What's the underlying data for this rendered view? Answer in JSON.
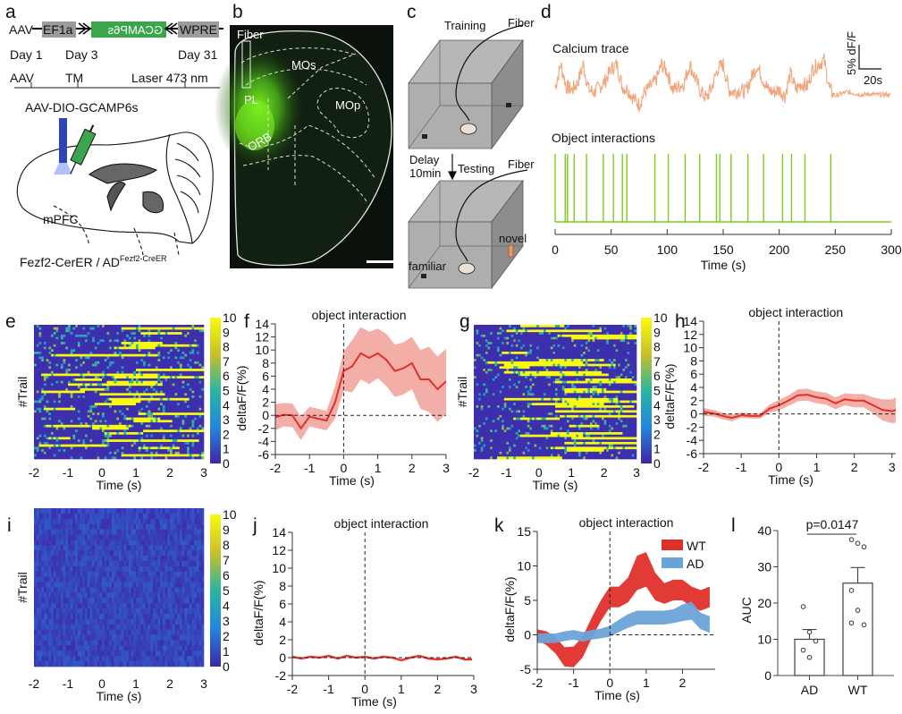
{
  "panel_labels": [
    "a",
    "b",
    "c",
    "d",
    "e",
    "f",
    "g",
    "h",
    "i",
    "j",
    "k",
    "l"
  ],
  "panel_a": {
    "construct": {
      "left": "AAV",
      "ef1a": "EF1a",
      "gcamp": "GCAMP6s",
      "wpre": "WPRE"
    },
    "days": [
      "Day 1",
      "Day 3",
      "Day 31"
    ],
    "events": [
      "AAV",
      "TM",
      "Laser 473 nm"
    ],
    "virus": "AAV-DIO-GCAMP6s",
    "region": "mPFC",
    "genotype": "Fezf2-CerER / AD",
    "genotype_sup": "Fezf2-CreER",
    "colors": {
      "construct_gray": "#9b9b9b",
      "gcamp_green": "#3aa54a",
      "fiber_blue": "#2f45b5"
    }
  },
  "panel_b": {
    "fiber": "Fiber",
    "regions": [
      "PL",
      "MOs",
      "MOp",
      "ORB"
    ]
  },
  "panel_c": {
    "training": "Training",
    "fiber": "Fiber",
    "delay": "Delay",
    "delay_time": "10min",
    "testing": "Testing",
    "novel": "novel",
    "familiar": "familiar"
  },
  "panel_d": {
    "trace_title": "Calcium trace",
    "events_title": "Object interactions",
    "scale_y": "5% dF/F",
    "scale_x": "20s"
  },
  "chart_data": [
    {
      "id": "d_trace",
      "type": "line",
      "title": "Calcium trace",
      "x_step": 5,
      "x_start": 0,
      "values": [
        5.0,
        9.8,
        5.2,
        4.6,
        5.9,
        9.8,
        4.6,
        4.1,
        5.2,
        6.5,
        8.9,
        9.8,
        5.2,
        4.6,
        2.8,
        1.5,
        4.1,
        5.2,
        6.5,
        9.8,
        8.3,
        4.6,
        5.2,
        5.9,
        9.8,
        7.0,
        4.1,
        2.8,
        5.2,
        8.9,
        9.8,
        4.6,
        4.1,
        4.6,
        4.1,
        7.0,
        9.6,
        7.0,
        4.6,
        4.1,
        4.6,
        3.3,
        7.8,
        4.6,
        5.9,
        5.2,
        8.9,
        9.8,
        10.7,
        4.6,
        3.3,
        3.7,
        4.1,
        3.9,
        3.7,
        3.5,
        3.7,
        3.6,
        3.5,
        3.6,
        3.4
      ],
      "color": "#f2a57a"
    },
    {
      "id": "d_events",
      "type": "event-raster",
      "title": "Object interactions",
      "xlabel": "Time (s)",
      "xlim": [
        0,
        300
      ],
      "xticks": [
        0,
        50,
        100,
        150,
        200,
        250,
        300
      ],
      "events": [
        0,
        9,
        11,
        17,
        28,
        43,
        52,
        60,
        64,
        89,
        101,
        116,
        129,
        144,
        147,
        157,
        172,
        186,
        203,
        211,
        223,
        246
      ],
      "color": "#7ccc1c"
    },
    {
      "id": "e",
      "type": "heatmap",
      "xlabel": "Time (s)",
      "ylabel": "#Trail",
      "xlim": [
        -2,
        3
      ],
      "xticks": [
        -2,
        -1,
        0,
        1,
        2,
        3
      ],
      "colorbar": [
        0,
        10
      ],
      "colorbar_ticks": [
        0,
        1,
        2,
        3,
        4,
        5,
        6,
        7,
        8,
        9,
        10
      ],
      "response": "strong"
    },
    {
      "id": "f",
      "type": "line",
      "title": "object interaction",
      "xlabel": "Time (s)",
      "ylabel": "deltaF/F(%)",
      "xlim": [
        -2,
        3
      ],
      "ylim": [
        -6,
        14
      ],
      "xticks": [
        -2,
        -1,
        0,
        1,
        2,
        3
      ],
      "yticks": [
        -6,
        -4,
        -2,
        0,
        2,
        4,
        6,
        8,
        10,
        12,
        14
      ],
      "x": [
        -2,
        -1.75,
        -1.5,
        -1.25,
        -1,
        -0.75,
        -0.5,
        -0.25,
        0,
        0.25,
        0.5,
        0.75,
        1,
        1.25,
        1.5,
        1.75,
        2,
        2.25,
        2.5,
        2.75,
        3
      ],
      "mean": [
        -0.3,
        0.1,
        0,
        -2.0,
        -0.2,
        -0.5,
        -0.8,
        2.0,
        6.8,
        7.5,
        9.5,
        8.8,
        9.5,
        8.5,
        6.8,
        7.2,
        8.0,
        5.5,
        5.5,
        4.0,
        5.2
      ],
      "sem": [
        2,
        1.8,
        1.8,
        1.8,
        1.5,
        1.5,
        1.5,
        2.5,
        3,
        4,
        4,
        4,
        3.8,
        4,
        4,
        4,
        4,
        4.5,
        5,
        5,
        5
      ],
      "line_color": "#e0302a",
      "band_color": "#f19a92"
    },
    {
      "id": "g",
      "type": "heatmap",
      "xlabel": "Time (s)",
      "ylabel": "#Trail",
      "xlim": [
        -2,
        3
      ],
      "xticks": [
        -2,
        -1,
        0,
        1,
        2,
        3
      ],
      "colorbar": [
        0,
        10
      ],
      "colorbar_ticks": [
        0,
        1,
        2,
        3,
        4,
        5,
        6,
        7,
        8,
        9,
        10
      ],
      "response": "medium"
    },
    {
      "id": "h",
      "type": "line",
      "title": "object interaction",
      "xlabel": "Time (s)",
      "ylabel": "deltaF/F(%)",
      "xlim": [
        -2,
        3.1
      ],
      "ylim": [
        -6,
        14
      ],
      "xticks": [
        -2,
        -1,
        0,
        1,
        2,
        3
      ],
      "yticks": [
        -6,
        -4,
        -2,
        0,
        2,
        4,
        6,
        8,
        10,
        12,
        14
      ],
      "x": [
        -2,
        -1.75,
        -1.5,
        -1.25,
        -1,
        -0.75,
        -0.5,
        -0.25,
        0,
        0.25,
        0.5,
        0.75,
        1,
        1.25,
        1.5,
        1.75,
        2,
        2.25,
        2.5,
        2.75,
        3,
        3.1
      ],
      "mean": [
        0.3,
        0.1,
        -0.3,
        -0.6,
        -0.2,
        -0.3,
        -0.3,
        0.8,
        1.3,
        2.0,
        2.8,
        2.9,
        2.5,
        2.3,
        1.6,
        2.2,
        2.0,
        2.0,
        1.3,
        0.6,
        0.4,
        0.6
      ],
      "sem": [
        0.6,
        0.5,
        0.5,
        0.5,
        0.4,
        0.4,
        0.4,
        0.6,
        0.8,
        0.8,
        0.9,
        0.9,
        0.9,
        0.9,
        0.9,
        0.9,
        1,
        1,
        1.2,
        1.6,
        1.8,
        1.9
      ],
      "line_color": "#e0302a",
      "band_color": "#f19a92"
    },
    {
      "id": "i",
      "type": "heatmap",
      "xlabel": "Time (s)",
      "ylabel": "#Trail",
      "xlim": [
        -2,
        3
      ],
      "xticks": [
        -2,
        -1,
        0,
        1,
        2,
        3
      ],
      "colorbar": [
        0,
        10
      ],
      "colorbar_ticks": [
        0,
        1,
        2,
        3,
        4,
        5,
        6,
        7,
        8,
        9,
        10
      ],
      "response": "none"
    },
    {
      "id": "j",
      "type": "line",
      "title": "object interaction",
      "xlabel": "Time (s)",
      "ylabel": "deltaF/F(%)",
      "xlim": [
        -2,
        3
      ],
      "ylim": [
        -2,
        14
      ],
      "xticks": [
        -2,
        -1,
        0,
        1,
        2,
        3
      ],
      "yticks": [
        -2,
        0,
        2,
        4,
        6,
        8,
        10,
        12,
        14
      ],
      "x": [
        -2,
        -1.75,
        -1.5,
        -1.25,
        -1,
        -0.75,
        -0.5,
        -0.25,
        0,
        0.25,
        0.5,
        0.75,
        1,
        1.25,
        1.5,
        1.75,
        2,
        2.25,
        2.5,
        2.75,
        2.95
      ],
      "mean": [
        0.1,
        -0.1,
        0.1,
        0,
        0.2,
        -0.1,
        0.2,
        0,
        0.1,
        -0.1,
        0.1,
        0,
        -0.3,
        0,
        0.2,
        -0.1,
        -0.2,
        -0.1,
        0.1,
        -0.2,
        -0.2
      ],
      "sem": [
        0.15,
        0.15,
        0.15,
        0.15,
        0.15,
        0.15,
        0.15,
        0.15,
        0.15,
        0.15,
        0.15,
        0.15,
        0.15,
        0.15,
        0.15,
        0.15,
        0.15,
        0.15,
        0.15,
        0.15,
        0.15
      ],
      "line_color": "#e0302a",
      "band_color": "#f19a92"
    },
    {
      "id": "k",
      "type": "area",
      "title": "object interaction",
      "xlabel": "Time (s)",
      "ylabel": "deltaF/F(%)",
      "xlim": [
        -2,
        2.9
      ],
      "ylim": [
        -5,
        15
      ],
      "xticks": [
        -2,
        -1,
        0,
        1,
        2
      ],
      "yticks": [
        -5,
        0,
        5,
        10,
        15
      ],
      "legend": "top-right",
      "x": [
        -2,
        -1.75,
        -1.5,
        -1.25,
        -1,
        -0.75,
        -0.5,
        -0.25,
        0,
        0.25,
        0.5,
        0.75,
        1,
        1.25,
        1.5,
        1.75,
        2,
        2.25,
        2.5,
        2.75
      ],
      "series": [
        {
          "name": "WT",
          "color": "#e0302a",
          "mean": [
            0,
            -0.5,
            -1.5,
            -3.2,
            -3.2,
            -1.8,
            1.0,
            3.5,
            5.5,
            5.5,
            6.5,
            9.0,
            9.5,
            7.0,
            6.0,
            6.5,
            6.5,
            5.5,
            5.0,
            5.5
          ],
          "sem": [
            0.8,
            1,
            1.2,
            1.4,
            1.5,
            1.5,
            1.5,
            1.5,
            1.5,
            1.5,
            1.8,
            2.5,
            2.5,
            2,
            1.5,
            1.5,
            1.5,
            1.5,
            1.5,
            1.5
          ]
        },
        {
          "name": "AD",
          "color": "#6aa3d8",
          "mean": [
            -0.5,
            -0.5,
            -0.5,
            -0.2,
            0,
            -0.3,
            0,
            0.2,
            0.5,
            1.3,
            2.0,
            2.5,
            2.5,
            2.5,
            2.5,
            2.7,
            3.2,
            3.5,
            2.0,
            1.5
          ],
          "sem": [
            0.7,
            0.7,
            0.7,
            0.7,
            0.7,
            0.7,
            0.7,
            0.7,
            0.8,
            0.9,
            1,
            1,
            1,
            1,
            1,
            1,
            1.2,
            1.3,
            1.2,
            1.2
          ]
        }
      ]
    },
    {
      "id": "l",
      "type": "bar",
      "ylabel": "AUC",
      "ylim": [
        0,
        40
      ],
      "yticks": [
        0,
        10,
        20,
        30,
        40
      ],
      "categories": [
        "AD",
        "WT"
      ],
      "values": [
        10,
        25.5
      ],
      "sem": [
        2.7,
        4.3
      ],
      "points": [
        [
          19,
          12,
          9.5,
          7,
          5
        ],
        [
          37.5,
          36.5,
          35.5,
          23.5,
          18,
          14,
          14.5
        ]
      ],
      "annotation": "p=0.0147"
    }
  ]
}
